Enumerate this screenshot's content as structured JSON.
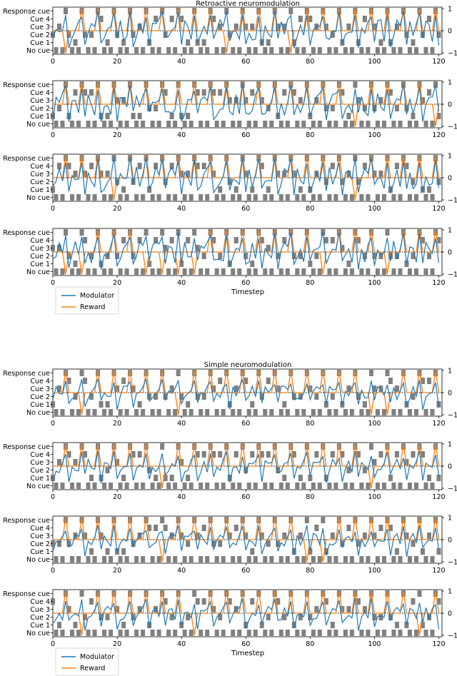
{
  "figure": {
    "xlabel": "Timestep",
    "y_cue_labels": [
      "Response cue",
      "Cue 4",
      "Cue 3",
      "Cue 2",
      "Cue 1",
      "No cue"
    ],
    "x_ticks": [
      0,
      20,
      40,
      60,
      80,
      100,
      120
    ],
    "y_right_ticks": [
      1,
      0,
      -1
    ],
    "legend": [
      {
        "name": "Modulator",
        "color": "#1f77b4"
      },
      {
        "name": "Reward",
        "color": "#ff7f0e"
      }
    ],
    "colors": {
      "modulator": "#1f77b4",
      "reward": "#ff7f0e",
      "cue_block": "#808080",
      "baseline": "#000000"
    }
  },
  "chart_data": [
    {
      "type": "line",
      "title": "Retroactive neuromodulation",
      "panel_count": 4,
      "xlim": [
        0,
        121
      ],
      "ylim_right": [
        -1,
        1
      ],
      "series": [
        "Modulator",
        "Reward"
      ]
    },
    {
      "type": "line",
      "title": "Simple neuromodulation",
      "panel_count": 4,
      "xlim": [
        0,
        121
      ],
      "ylim_right": [
        -1,
        1
      ],
      "series": [
        "Modulator",
        "Reward"
      ]
    }
  ]
}
